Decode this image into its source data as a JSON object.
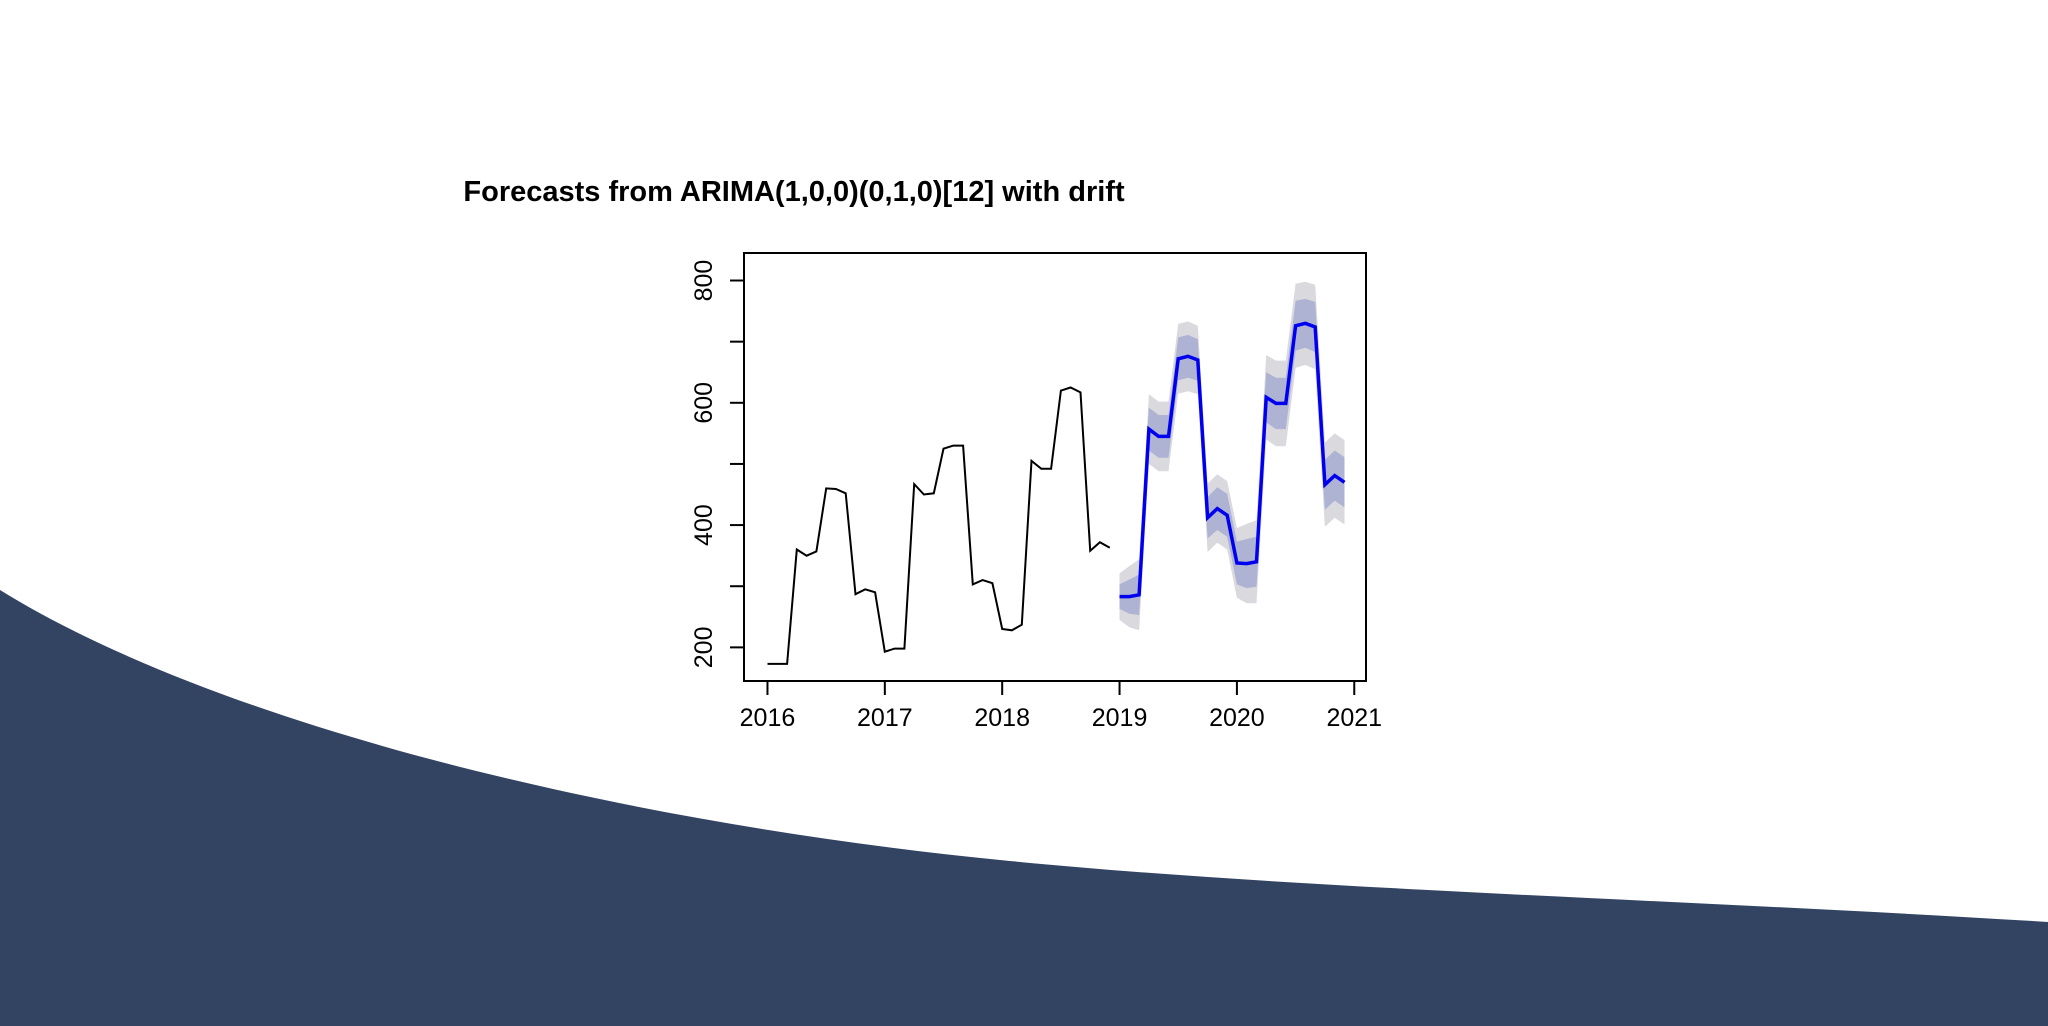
{
  "colors": {
    "wave": "#334463",
    "forecast_line": "#0000ee",
    "band_80": "#aeb3d4",
    "band_95": "#d9d9de",
    "history_line": "#000000"
  },
  "chart_data": {
    "type": "line",
    "title": "Forecasts from ARIMA(1,0,0)(0,1,0)[12] with drift",
    "xlabel": "",
    "ylabel": "",
    "xlim": [
      2015.8,
      2021.1
    ],
    "ylim": [
      145,
      845
    ],
    "x_ticks": [
      2016,
      2017,
      2018,
      2019,
      2020,
      2021
    ],
    "y_ticks": [
      200,
      400,
      600,
      800
    ],
    "grid": false,
    "legend": "none",
    "history": {
      "x": [
        2016.0,
        2016.083,
        2016.167,
        2016.25,
        2016.333,
        2016.417,
        2016.5,
        2016.583,
        2016.667,
        2016.75,
        2016.833,
        2016.917,
        2017.0,
        2017.083,
        2017.167,
        2017.25,
        2017.333,
        2017.417,
        2017.5,
        2017.583,
        2017.667,
        2017.75,
        2017.833,
        2017.917,
        2018.0,
        2018.083,
        2018.167,
        2018.25,
        2018.333,
        2018.417,
        2018.5,
        2018.583,
        2018.667,
        2018.75,
        2018.833,
        2018.917
      ],
      "y": [
        173,
        173,
        173,
        360,
        350,
        357,
        460,
        459,
        452,
        287,
        295,
        290,
        193,
        198,
        198,
        467,
        450,
        452,
        525,
        530,
        530,
        303,
        310,
        305,
        230,
        228,
        237,
        505,
        492,
        492,
        620,
        625,
        617,
        358,
        372,
        363
      ]
    },
    "forecast": {
      "x": [
        2019.0,
        2019.083,
        2019.167,
        2019.25,
        2019.333,
        2019.417,
        2019.5,
        2019.583,
        2019.667,
        2019.75,
        2019.833,
        2019.917,
        2020.0,
        2020.083,
        2020.167,
        2020.25,
        2020.333,
        2020.417,
        2020.5,
        2020.583,
        2020.667,
        2020.75,
        2020.833,
        2020.917
      ],
      "mean": [
        283,
        283,
        286,
        557,
        545,
        545,
        672,
        676,
        670,
        412,
        427,
        416,
        338,
        337,
        340,
        609,
        599,
        599,
        726,
        730,
        724,
        466,
        481,
        470
      ],
      "lo80": [
        263,
        255,
        253,
        522,
        510,
        510,
        637,
        641,
        636,
        378,
        392,
        381,
        303,
        297,
        299,
        568,
        557,
        557,
        685,
        690,
        683,
        425,
        440,
        429
      ],
      "hi80": [
        303,
        311,
        319,
        592,
        580,
        580,
        707,
        711,
        704,
        446,
        462,
        451,
        373,
        377,
        381,
        650,
        641,
        641,
        767,
        770,
        765,
        507,
        522,
        511
      ],
      "lo95": [
        245,
        233,
        228,
        500,
        488,
        488,
        615,
        619,
        614,
        356,
        371,
        360,
        281,
        272,
        272,
        540,
        529,
        529,
        657,
        662,
        655,
        397,
        412,
        401
      ],
      "hi95": [
        321,
        333,
        344,
        614,
        602,
        602,
        729,
        733,
        726,
        468,
        483,
        472,
        395,
        402,
        408,
        678,
        669,
        669,
        795,
        798,
        793,
        535,
        550,
        539
      ]
    }
  }
}
